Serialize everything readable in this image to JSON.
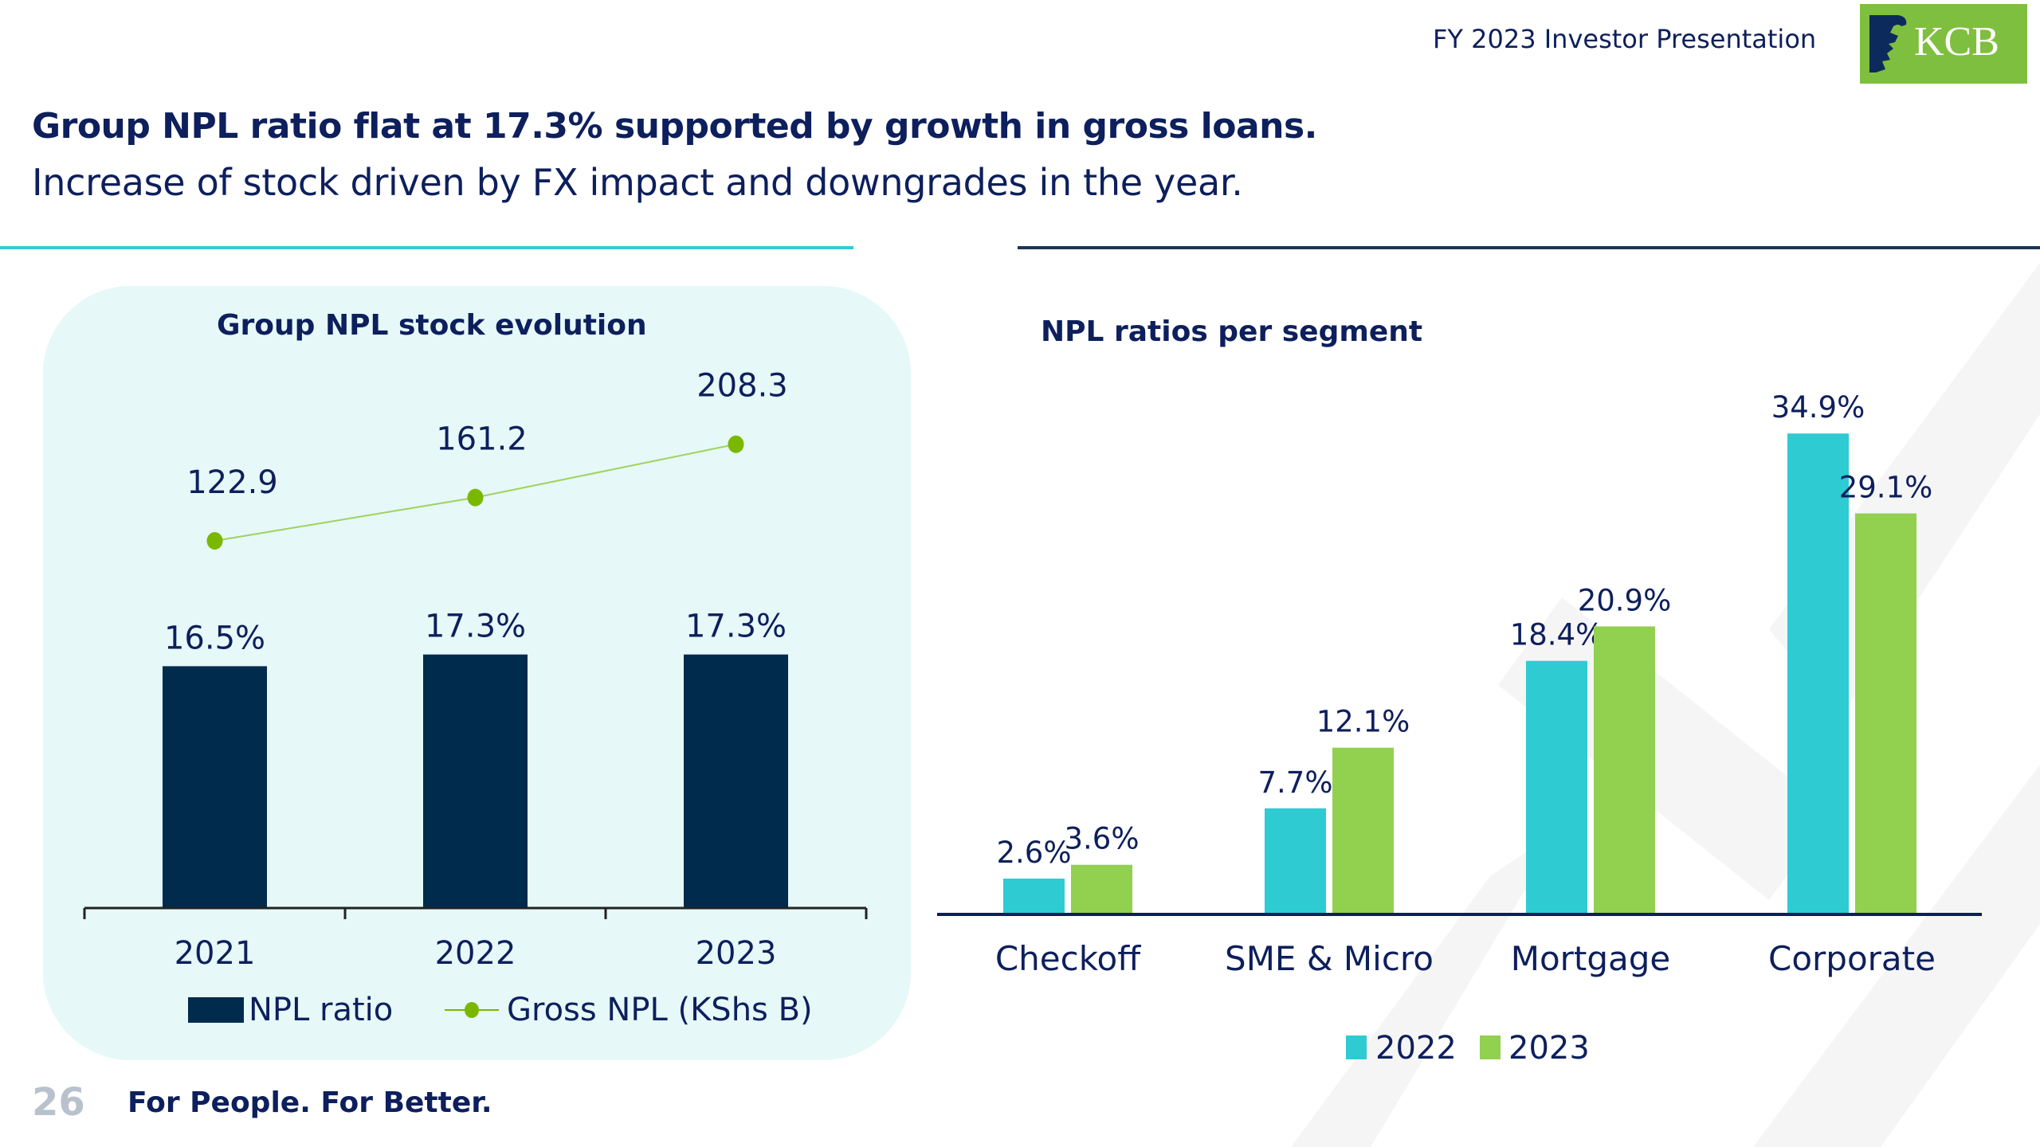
{
  "header": {
    "presentation_title": "FY 2023 Investor Presentation",
    "logo_text": "KCB",
    "logo_icon": "lion-head-icon"
  },
  "headline": "Group NPL ratio flat at 17.3% supported by growth in gross loans.",
  "subheadline": "Increase of stock driven by FX impact and downgrades in the year.",
  "footer": {
    "page_number": "26",
    "tagline": "For People. For Better."
  },
  "colors": {
    "navy": "#0d1f5c",
    "bar_navy": "#002b4d",
    "cyan": "#2ecbd3",
    "green": "#92d050",
    "line_green": "#7ab800",
    "panel_bg": "#e6f8f8",
    "logo_green": "#7fbf3f"
  },
  "chart_data": [
    {
      "type": "bar+line",
      "title": "Group NPL stock evolution",
      "categories": [
        "2021",
        "2022",
        "2023"
      ],
      "series": [
        {
          "name": "NPL ratio",
          "kind": "bar",
          "values": [
            16.5,
            17.3,
            17.3
          ],
          "labels": [
            "16.5%",
            "17.3%",
            "17.3%"
          ],
          "unit": "%"
        },
        {
          "name": "Gross NPL (KShs B)",
          "kind": "line",
          "values": [
            122.9,
            161.2,
            208.3
          ],
          "labels": [
            "122.9",
            "161.2",
            "208.3"
          ]
        }
      ],
      "xlabel": "",
      "ylabel": "",
      "grid": false,
      "legend": "bottom"
    },
    {
      "type": "bar",
      "title": "NPL ratios per segment",
      "categories": [
        "Checkoff",
        "SME & Micro",
        "Mortgage",
        "Corporate"
      ],
      "series": [
        {
          "name": "2022",
          "values": [
            2.6,
            7.7,
            18.4,
            34.9
          ],
          "labels": [
            "2.6%",
            "7.7%",
            "18.4%",
            "34.9%"
          ]
        },
        {
          "name": "2023",
          "values": [
            3.6,
            12.1,
            20.9,
            29.1
          ],
          "labels": [
            "3.6%",
            "12.1%",
            "20.9%",
            "29.1%"
          ]
        }
      ],
      "unit": "%",
      "xlabel": "",
      "ylabel": "",
      "grid": false,
      "legend": "bottom"
    }
  ]
}
